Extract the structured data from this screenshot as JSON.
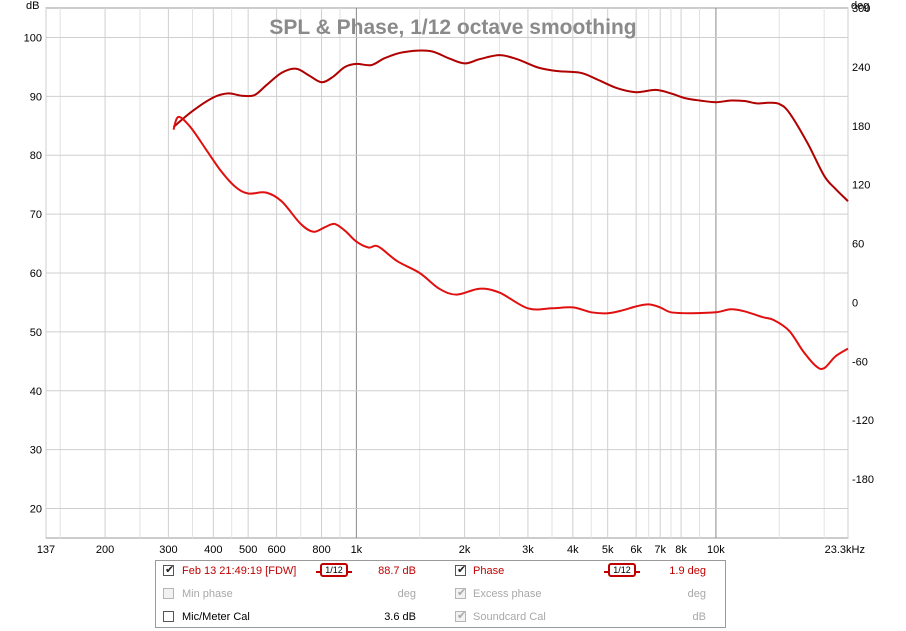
{
  "chart_data": {
    "type": "line",
    "title": "SPL & Phase, 1/12 octave smoothing",
    "y_left_unit": "dB",
    "y_right_unit": "deg",
    "x_scale": "log",
    "xlim": [
      137,
      23300
    ],
    "ylim_left": [
      15,
      105
    ],
    "ylim_right": [
      -240,
      300
    ],
    "x_ticks": [
      {
        "v": 137,
        "label": "137"
      },
      {
        "v": 200,
        "label": "200"
      },
      {
        "v": 300,
        "label": "300"
      },
      {
        "v": 400,
        "label": "400"
      },
      {
        "v": 500,
        "label": "500"
      },
      {
        "v": 600,
        "label": "600"
      },
      {
        "v": 800,
        "label": "800"
      },
      {
        "v": 1000,
        "label": "1k"
      },
      {
        "v": 2000,
        "label": "2k"
      },
      {
        "v": 3000,
        "label": "3k"
      },
      {
        "v": 4000,
        "label": "4k"
      },
      {
        "v": 5000,
        "label": "5k"
      },
      {
        "v": 6000,
        "label": "6k"
      },
      {
        "v": 7000,
        "label": "7k"
      },
      {
        "v": 8000,
        "label": "8k"
      },
      {
        "v": 10000,
        "label": "10k"
      },
      {
        "v": 23300,
        "label": "23.3kHz"
      }
    ],
    "x_minor_grid": [
      150,
      250,
      350,
      450,
      700,
      900,
      1500,
      2500,
      3500,
      4500,
      6500,
      7500,
      9000,
      15000,
      20000
    ],
    "y_left_ticks": [
      20,
      30,
      40,
      50,
      60,
      70,
      80,
      90,
      100
    ],
    "y_right_ticks": [
      -180,
      -120,
      -60,
      0,
      60,
      120,
      180,
      240,
      300
    ],
    "grid": true,
    "series": [
      {
        "name": "Feb 13 21:49:19 [FDW]",
        "axis": "left",
        "color": "#b00000",
        "points": [
          [
            310,
            84.8
          ],
          [
            350,
            87.5
          ],
          [
            400,
            89.8
          ],
          [
            440,
            90.5
          ],
          [
            480,
            90.1
          ],
          [
            520,
            90.2
          ],
          [
            560,
            91.8
          ],
          [
            620,
            94.0
          ],
          [
            680,
            94.7
          ],
          [
            740,
            93.5
          ],
          [
            800,
            92.4
          ],
          [
            860,
            93.3
          ],
          [
            930,
            95.0
          ],
          [
            1000,
            95.5
          ],
          [
            1100,
            95.3
          ],
          [
            1200,
            96.5
          ],
          [
            1350,
            97.5
          ],
          [
            1600,
            97.7
          ],
          [
            1800,
            96.5
          ],
          [
            2000,
            95.6
          ],
          [
            2200,
            96.3
          ],
          [
            2500,
            97.0
          ],
          [
            2800,
            96.3
          ],
          [
            3200,
            94.9
          ],
          [
            3600,
            94.3
          ],
          [
            4200,
            94.0
          ],
          [
            4700,
            92.8
          ],
          [
            5300,
            91.4
          ],
          [
            6000,
            90.7
          ],
          [
            6800,
            91.1
          ],
          [
            7500,
            90.5
          ],
          [
            8200,
            89.7
          ],
          [
            9000,
            89.3
          ],
          [
            10000,
            89.0
          ],
          [
            11000,
            89.3
          ],
          [
            12000,
            89.2
          ],
          [
            13000,
            88.8
          ],
          [
            14000,
            88.9
          ],
          [
            15000,
            88.7
          ],
          [
            16000,
            87.2
          ],
          [
            18000,
            82.0
          ],
          [
            20000,
            76.5
          ],
          [
            21500,
            74.3
          ],
          [
            23300,
            72.2
          ]
        ]
      },
      {
        "name": "Phase",
        "axis": "right",
        "color": "#e01010",
        "points": [
          [
            310,
            176
          ],
          [
            320,
            189
          ],
          [
            345,
            179
          ],
          [
            380,
            157
          ],
          [
            420,
            134
          ],
          [
            460,
            118
          ],
          [
            500,
            111
          ],
          [
            560,
            112
          ],
          [
            620,
            103
          ],
          [
            700,
            80
          ],
          [
            760,
            72
          ],
          [
            820,
            77
          ],
          [
            870,
            80
          ],
          [
            930,
            73
          ],
          [
            1000,
            62
          ],
          [
            1080,
            56
          ],
          [
            1150,
            57
          ],
          [
            1300,
            42
          ],
          [
            1500,
            30
          ],
          [
            1700,
            14
          ],
          [
            1900,
            8
          ],
          [
            2200,
            14
          ],
          [
            2500,
            10
          ],
          [
            3000,
            -6
          ],
          [
            3500,
            -6
          ],
          [
            4000,
            -5
          ],
          [
            4500,
            -10
          ],
          [
            5000,
            -11
          ],
          [
            5500,
            -8
          ],
          [
            6000,
            -4
          ],
          [
            6500,
            -2
          ],
          [
            7000,
            -5
          ],
          [
            7500,
            -10
          ],
          [
            8500,
            -11
          ],
          [
            10000,
            -10
          ],
          [
            11000,
            -7
          ],
          [
            12000,
            -9
          ],
          [
            13500,
            -15
          ],
          [
            14500,
            -18
          ],
          [
            16000,
            -29
          ],
          [
            17500,
            -50
          ],
          [
            19000,
            -65
          ],
          [
            20000,
            -67
          ],
          [
            21500,
            -55
          ],
          [
            23300,
            -47
          ]
        ]
      }
    ]
  },
  "legend": {
    "rows": [
      {
        "left_label": "Feb 13 21:49:19 [FDW]",
        "left_smoothing": "1/12",
        "left_value": "88.7 dB",
        "right_label": "Phase",
        "right_smoothing": "1/12",
        "right_value": "1.9 deg"
      },
      {
        "left_label": "Min phase",
        "left_value": "deg",
        "right_label": "Excess phase",
        "right_value": "deg"
      },
      {
        "left_label": "Mic/Meter Cal",
        "left_value": "3.6 dB",
        "right_label": "Soundcard Cal",
        "right_value": "dB"
      }
    ]
  }
}
